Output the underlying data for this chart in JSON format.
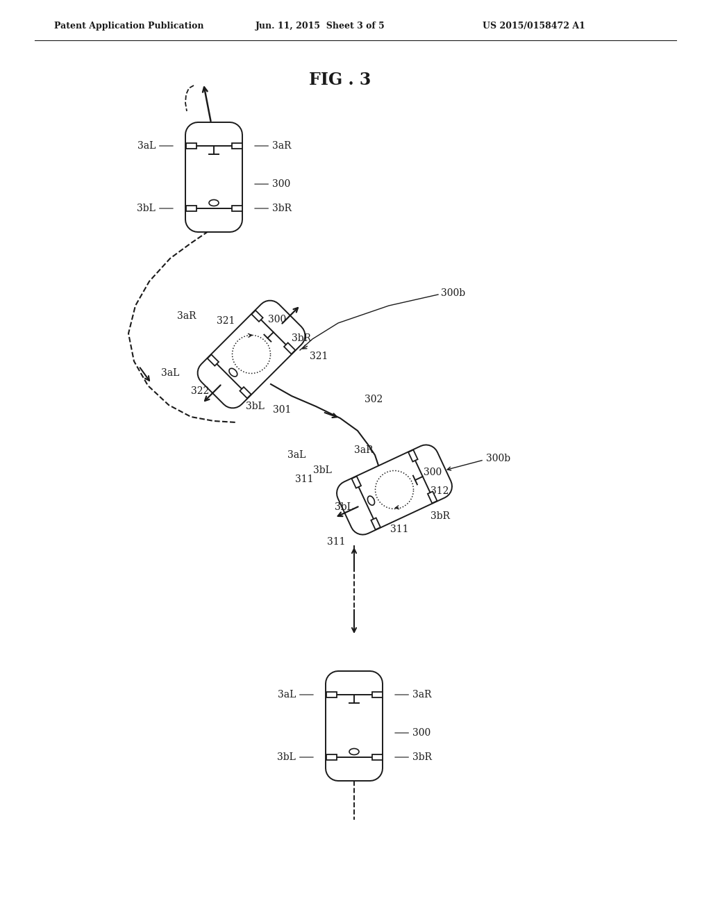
{
  "title": "FIG . 3",
  "header_left": "Patent Application Publication",
  "header_mid": "Jun. 11, 2015  Sheet 3 of 5",
  "header_right": "US 2015/0158472 A1",
  "bg_color": "#ffffff",
  "line_color": "#1a1a1a",
  "text_color": "#1a1a1a",
  "fig_w": 1024,
  "fig_h": 1320
}
